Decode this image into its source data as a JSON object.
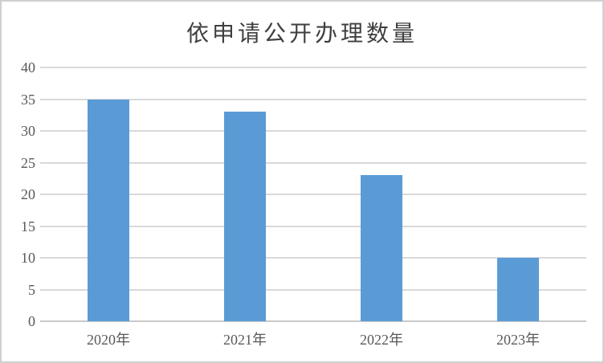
{
  "chart_data": {
    "type": "bar",
    "title": "依申请公开办理数量",
    "categories": [
      "2020年",
      "2021年",
      "2022年",
      "2023年"
    ],
    "values": [
      35,
      33,
      23,
      10
    ],
    "xlabel": "",
    "ylabel": "",
    "ylim": [
      0,
      40
    ],
    "yticks": [
      0,
      5,
      10,
      15,
      20,
      25,
      30,
      35,
      40
    ],
    "grid": "horizontal",
    "legend": "none",
    "colors": {
      "bar": "#5B9BD5",
      "gridline": "#D9D9D9",
      "axis_line": "#C9C9C9",
      "tick_text": "#595959",
      "title_text": "#3F3F3F",
      "background": "#FFFFFF",
      "frame_border": "#CFCFCF"
    }
  }
}
